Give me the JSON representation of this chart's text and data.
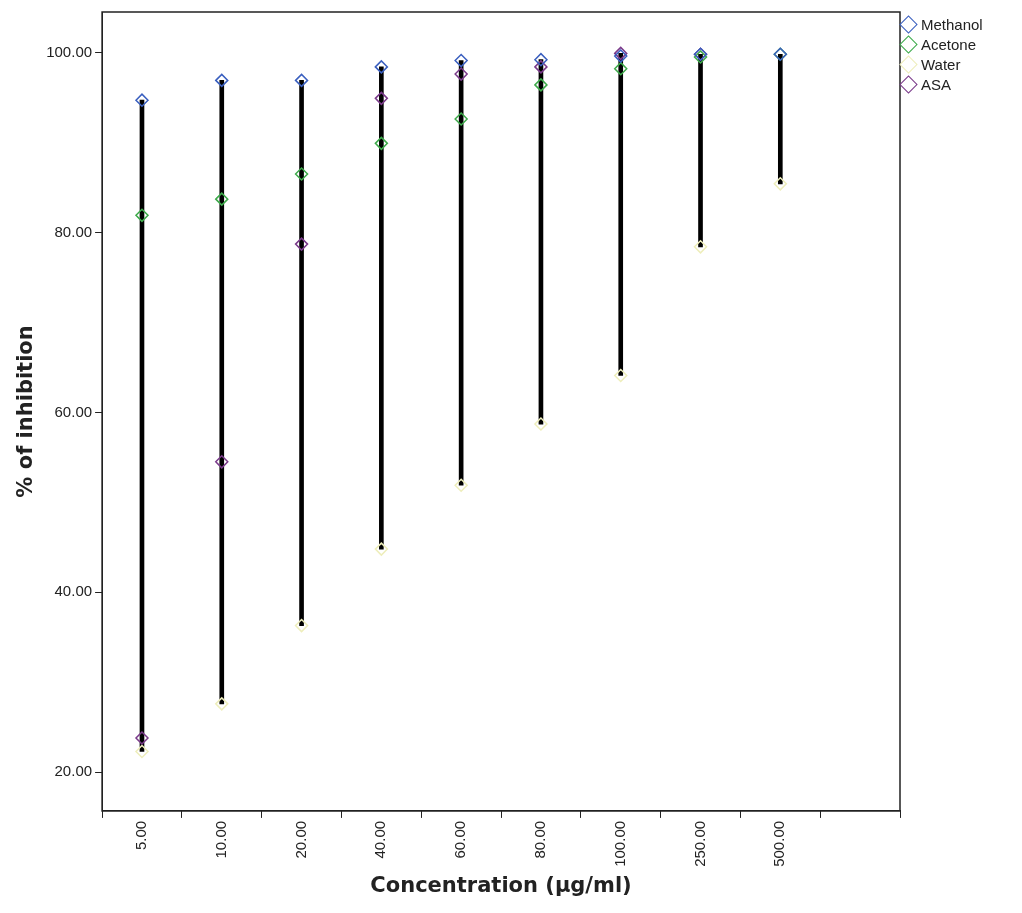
{
  "chart_data": {
    "type": "scatter",
    "xlabel": "Concentration (µg/ml)",
    "ylabel": "% of inhibition",
    "categories": [
      "5.00",
      "10.00",
      "20.00",
      "40.00",
      "60.00",
      "80.00",
      "100.00",
      "250.00",
      "500.00",
      null
    ],
    "ylim": [
      15.7,
      104.5
    ],
    "yticks": [
      {
        "value": 20,
        "label": "20.00"
      },
      {
        "value": 40,
        "label": "40.00"
      },
      {
        "value": 60,
        "label": "60.00"
      },
      {
        "value": 80,
        "label": "80.00"
      },
      {
        "value": 100,
        "label": "100.00"
      }
    ],
    "grid": false,
    "legend": "top right",
    "marker": "diamond",
    "series": [
      {
        "type": "bar",
        "color": "#000000",
        "base": [
          22.3,
          27.6,
          36.3,
          44.8,
          51.9,
          58.7,
          64.1,
          78.4,
          85.4,
          null
        ],
        "values": [
          72.4,
          69.3,
          60.6,
          53.6,
          47.2,
          40.5,
          35.8,
          21.4,
          14.4,
          null
        ]
      },
      {
        "name": "Methanol",
        "color": "#3a5fbf",
        "values": [
          94.7,
          96.9,
          96.9,
          98.4,
          99.1,
          99.2,
          99.6,
          99.8,
          99.8,
          null
        ]
      },
      {
        "name": "Acetone",
        "color": "#3daa4a",
        "values": [
          81.9,
          83.7,
          86.5,
          89.9,
          92.6,
          96.4,
          98.2,
          99.5,
          99.8,
          null
        ]
      },
      {
        "name": "Water",
        "color": "#eeeebb",
        "values": [
          22.3,
          27.6,
          36.3,
          44.8,
          51.9,
          58.7,
          64.1,
          78.4,
          85.4,
          null
        ]
      },
      {
        "name": "ASA",
        "color": "#7a3a8a",
        "values": [
          23.8,
          54.5,
          78.7,
          94.9,
          97.6,
          98.4,
          99.9,
          99.8,
          null,
          null
        ]
      }
    ]
  }
}
